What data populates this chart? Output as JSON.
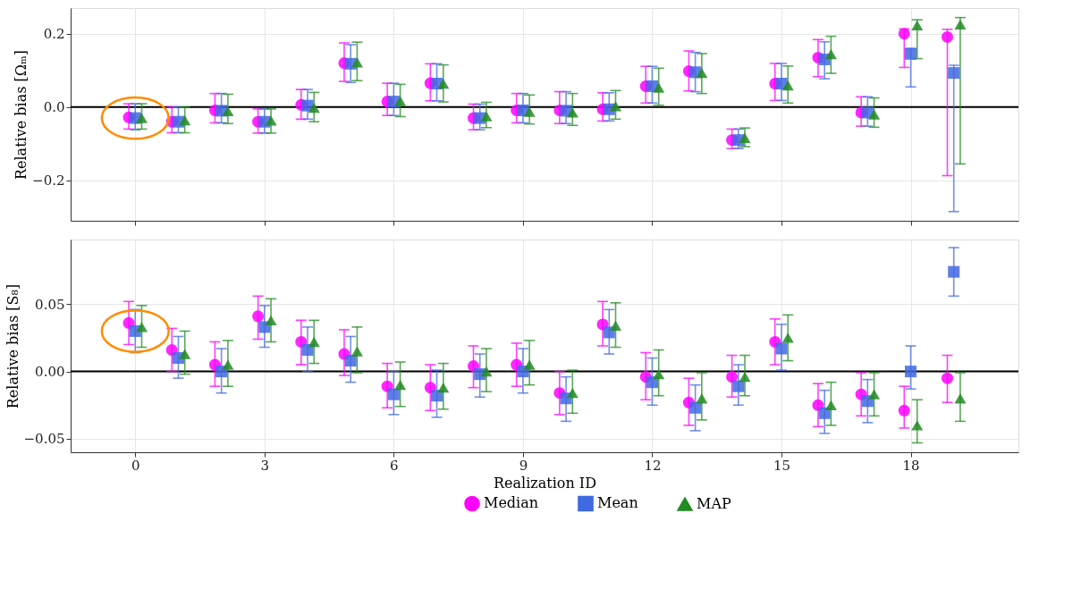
{
  "chart_data": [
    {
      "type": "scatter",
      "ylabel": "Relative bias  [Ωₘ]",
      "xlim": [
        -1.5,
        20.5
      ],
      "xticks": [
        0,
        3,
        6,
        9,
        12,
        15,
        18
      ],
      "ylim": [
        -0.31,
        0.27
      ],
      "yticks": [
        {
          "value": -0.2,
          "label": "−0.2"
        },
        {
          "value": 0,
          "label": "0.0"
        },
        {
          "value": 0.2,
          "label": "0.2"
        }
      ],
      "grid": true,
      "tick_labels": "y",
      "legend": "bottom",
      "ref_lines": [
        {
          "axis": "y",
          "value": 0,
          "color": "#000000"
        }
      ],
      "series": [
        {
          "name": "Median",
          "color": "#ff00ff",
          "marker": "circle",
          "x": [
            -0.15,
            0.85,
            1.85,
            2.85,
            3.85,
            4.85,
            5.85,
            6.85,
            7.85,
            8.85,
            9.85,
            10.85,
            11.85,
            12.85,
            13.85,
            14.85,
            15.85,
            16.85,
            17.85,
            18.85
          ],
          "values": [
            -0.028,
            -0.04,
            -0.009,
            -0.04,
            0.006,
            0.12,
            0.015,
            0.065,
            -0.03,
            -0.009,
            -0.009,
            -0.006,
            0.057,
            0.098,
            -0.09,
            0.064,
            0.135,
            -0.015,
            0.2,
            0.191
          ],
          "errors": [
            [
              -0.06,
              0.009
            ],
            [
              -0.07,
              0.0
            ],
            [
              -0.043,
              0.037
            ],
            [
              -0.071,
              -0.005
            ],
            [
              -0.033,
              0.048
            ],
            [
              0.07,
              0.175
            ],
            [
              -0.023,
              0.065
            ],
            [
              0.017,
              0.118
            ],
            [
              -0.062,
              0.008
            ],
            [
              -0.043,
              0.037
            ],
            [
              -0.045,
              0.042
            ],
            [
              -0.038,
              0.039
            ],
            [
              0.011,
              0.111
            ],
            [
              0.044,
              0.153
            ],
            [
              -0.113,
              -0.06
            ],
            [
              0.018,
              0.119
            ],
            [
              0.083,
              0.184
            ],
            [
              -0.052,
              0.028
            ],
            [
              0.108,
              0.213
            ],
            [
              -0.187,
              0.212
            ]
          ]
        },
        {
          "name": "Mean",
          "color": "#4169e1",
          "marker": "square",
          "x": [
            0,
            1,
            2,
            3,
            4,
            5,
            6,
            7,
            8,
            9,
            10,
            11,
            12,
            13,
            14,
            15,
            16,
            17,
            18,
            19
          ],
          "values": [
            -0.03,
            -0.04,
            -0.01,
            -0.04,
            0.004,
            0.118,
            0.015,
            0.064,
            -0.03,
            -0.009,
            -0.01,
            -0.006,
            0.057,
            0.095,
            -0.09,
            0.064,
            0.13,
            -0.015,
            0.145,
            0.093
          ],
          "errors": [
            [
              -0.062,
              0.009
            ],
            [
              -0.07,
              0.0
            ],
            [
              -0.043,
              0.037
            ],
            [
              -0.071,
              -0.005
            ],
            [
              -0.033,
              0.048
            ],
            [
              0.067,
              0.17
            ],
            [
              -0.023,
              0.065
            ],
            [
              0.017,
              0.118
            ],
            [
              -0.062,
              0.008
            ],
            [
              -0.043,
              0.037
            ],
            [
              -0.045,
              0.042
            ],
            [
              -0.038,
              0.039
            ],
            [
              0.011,
              0.111
            ],
            [
              0.042,
              0.149
            ],
            [
              -0.113,
              -0.06
            ],
            [
              0.018,
              0.119
            ],
            [
              0.077,
              0.178
            ],
            [
              -0.052,
              0.028
            ],
            [
              0.055,
              0.16
            ],
            [
              -0.285,
              0.114
            ]
          ]
        },
        {
          "name": "MAP",
          "color": "#228b22",
          "marker": "triangle",
          "x": [
            0.15,
            1.15,
            2.15,
            3.15,
            4.15,
            5.15,
            6.15,
            7.15,
            8.15,
            9.15,
            10.15,
            11.15,
            12.15,
            13.15,
            14.15,
            15.15,
            16.15,
            17.15,
            18.15,
            19.15
          ],
          "values": [
            -0.03,
            -0.036,
            -0.011,
            -0.037,
            -0.002,
            0.122,
            0.016,
            0.064,
            -0.025,
            -0.013,
            -0.015,
            0.002,
            0.053,
            0.093,
            -0.084,
            0.059,
            0.144,
            -0.02,
            0.223,
            0.225
          ],
          "errors": [
            [
              -0.06,
              0.009
            ],
            [
              -0.07,
              0.0
            ],
            [
              -0.045,
              0.035
            ],
            [
              -0.071,
              -0.005
            ],
            [
              -0.04,
              0.04
            ],
            [
              0.072,
              0.177
            ],
            [
              -0.026,
              0.062
            ],
            [
              0.014,
              0.115
            ],
            [
              -0.056,
              0.013
            ],
            [
              -0.046,
              0.033
            ],
            [
              -0.05,
              0.037
            ],
            [
              -0.033,
              0.045
            ],
            [
              0.005,
              0.106
            ],
            [
              0.037,
              0.146
            ],
            [
              -0.108,
              -0.057
            ],
            [
              0.011,
              0.112
            ],
            [
              0.092,
              0.193
            ],
            [
              -0.055,
              0.025
            ],
            [
              0.132,
              0.238
            ],
            [
              -0.155,
              0.244
            ]
          ]
        }
      ]
    },
    {
      "type": "scatter",
      "xlabel": "Realization ID",
      "ylabel": "Relative bias  [S₈]",
      "xlim": [
        -1.5,
        20.5
      ],
      "xticks": [
        0,
        3,
        6,
        9,
        12,
        15,
        18
      ],
      "ylim": [
        -0.06,
        0.098
      ],
      "yticks": [
        {
          "value": -0.05,
          "label": "−0.05"
        },
        {
          "value": 0,
          "label": "0.00"
        },
        {
          "value": 0.05,
          "label": "0.05"
        }
      ],
      "grid": true,
      "legend": "bottom",
      "ref_lines": [
        {
          "axis": "y",
          "value": 0,
          "color": "#000000"
        }
      ],
      "series": [
        {
          "name": "Median",
          "color": "#ff00ff",
          "marker": "circle",
          "x": [
            -0.15,
            0.85,
            1.85,
            2.85,
            3.85,
            4.85,
            5.85,
            6.85,
            7.85,
            8.85,
            9.85,
            10.85,
            11.85,
            12.85,
            13.85,
            14.85,
            15.85,
            16.85,
            17.85,
            18.85
          ],
          "values": [
            0.036,
            0.016,
            0.005,
            0.041,
            0.022,
            0.013,
            -0.011,
            -0.012,
            0.004,
            0.005,
            -0.016,
            0.035,
            -0.004,
            -0.023,
            -0.004,
            0.022,
            -0.025,
            -0.017,
            -0.029,
            -0.005
          ],
          "errors": [
            [
              0.02,
              0.052
            ],
            [
              0.0,
              0.032
            ],
            [
              -0.011,
              0.022
            ],
            [
              0.024,
              0.056
            ],
            [
              0.005,
              0.038
            ],
            [
              -0.003,
              0.031
            ],
            [
              -0.027,
              0.006
            ],
            [
              -0.029,
              0.005
            ],
            [
              -0.012,
              0.019
            ],
            [
              -0.011,
              0.021
            ],
            [
              -0.032,
              0.0
            ],
            [
              0.019,
              0.052
            ],
            [
              -0.021,
              0.014
            ],
            [
              -0.04,
              -0.005
            ],
            [
              -0.019,
              0.012
            ],
            [
              0.005,
              0.039
            ],
            [
              -0.041,
              -0.009
            ],
            [
              -0.033,
              -0.001
            ],
            [
              -0.042,
              -0.011
            ],
            [
              -0.023,
              0.012
            ]
          ]
        },
        {
          "name": "Mean",
          "color": "#4169e1",
          "marker": "square",
          "x": [
            0,
            1,
            2,
            3,
            4,
            5,
            6,
            7,
            8,
            9,
            10,
            11,
            12,
            13,
            14,
            15,
            16,
            17,
            18,
            19
          ],
          "values": [
            0.03,
            0.01,
            0.0,
            0.033,
            0.016,
            0.008,
            -0.017,
            -0.018,
            -0.002,
            0.0,
            -0.02,
            0.029,
            -0.008,
            -0.027,
            -0.011,
            0.017,
            -0.031,
            -0.022,
            0.0,
            0.074
          ],
          "errors": [
            [
              0.014,
              0.046
            ],
            [
              -0.005,
              0.026
            ],
            [
              -0.016,
              0.017
            ],
            [
              0.018,
              0.049
            ],
            [
              0.0,
              0.033
            ],
            [
              -0.008,
              0.026
            ],
            [
              -0.032,
              0.0
            ],
            [
              -0.034,
              0.001
            ],
            [
              -0.019,
              0.013
            ],
            [
              -0.016,
              0.017
            ],
            [
              -0.037,
              -0.004
            ],
            [
              0.013,
              0.046
            ],
            [
              -0.025,
              0.01
            ],
            [
              -0.044,
              -0.01
            ],
            [
              -0.025,
              0.005
            ],
            [
              0.001,
              0.035
            ],
            [
              -0.046,
              -0.014
            ],
            [
              -0.038,
              -0.006
            ],
            [
              -0.013,
              0.019
            ],
            [
              0.056,
              0.092
            ]
          ]
        },
        {
          "name": "MAP",
          "color": "#228b22",
          "marker": "triangle",
          "x": [
            0.15,
            1.15,
            2.15,
            3.15,
            4.15,
            5.15,
            6.15,
            7.15,
            8.15,
            9.15,
            10.15,
            11.15,
            12.15,
            13.15,
            14.15,
            15.15,
            16.15,
            17.15,
            18.15,
            19.15
          ],
          "values": [
            0.033,
            0.013,
            0.005,
            0.038,
            0.022,
            0.015,
            -0.01,
            -0.012,
            0.0,
            0.005,
            -0.016,
            0.034,
            -0.002,
            -0.02,
            -0.004,
            0.025,
            -0.025,
            -0.017,
            -0.04,
            -0.02
          ],
          "errors": [
            [
              0.018,
              0.049
            ],
            [
              -0.002,
              0.03
            ],
            [
              -0.011,
              0.023
            ],
            [
              0.022,
              0.054
            ],
            [
              0.006,
              0.038
            ],
            [
              -0.001,
              0.033
            ],
            [
              -0.026,
              0.007
            ],
            [
              -0.028,
              0.006
            ],
            [
              -0.015,
              0.017
            ],
            [
              -0.01,
              0.023
            ],
            [
              -0.031,
              0.001
            ],
            [
              0.018,
              0.051
            ],
            [
              -0.018,
              0.016
            ],
            [
              -0.036,
              -0.001
            ],
            [
              -0.018,
              0.012
            ],
            [
              0.008,
              0.042
            ],
            [
              -0.04,
              -0.008
            ],
            [
              -0.033,
              -0.001
            ],
            [
              -0.053,
              -0.021
            ],
            [
              -0.037,
              -0.001
            ]
          ]
        }
      ]
    }
  ]
}
